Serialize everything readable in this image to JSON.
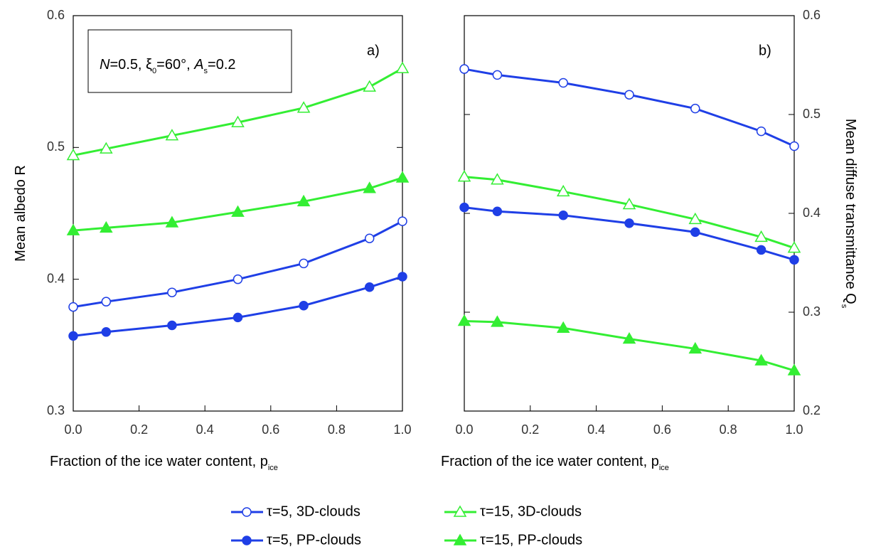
{
  "chart_data": [
    {
      "type": "line",
      "panel_label": "a)",
      "annotation": [
        "N",
        "=0.5, ξ",
        "0",
        "=60°, ",
        "A",
        "s",
        "=0.2"
      ],
      "xlabel": "Fraction of the ice water content, p",
      "xlabel_sub": "ice",
      "ylabel": "Mean albedo R",
      "yaxis_side": "left",
      "x": [
        0,
        0.1,
        0.3,
        0.5,
        0.7,
        0.9,
        1.0
      ],
      "xlim": [
        0,
        1
      ],
      "xticks": [
        {
          "value": 0,
          "label": "0.0"
        },
        0.2,
        0.4,
        0.6,
        0.8,
        {
          "value": 1,
          "label": "1.0"
        }
      ],
      "ylim": [
        0.3,
        0.6
      ],
      "yticks": [
        0.3,
        0.4,
        0.5,
        0.6
      ],
      "series": [
        {
          "name": "τ=5,  3D-clouds",
          "color": "#1f3fe6",
          "marker": "open-circle",
          "values": [
            0.379,
            0.383,
            0.39,
            0.4,
            0.412,
            0.431,
            0.444
          ]
        },
        {
          "name": "τ=15,  3D-clouds",
          "color": "#33ee33",
          "marker": "open-triangle",
          "values": [
            0.494,
            0.499,
            0.509,
            0.519,
            0.53,
            0.546,
            0.56
          ]
        },
        {
          "name": "τ=5,  PP-clouds",
          "color": "#1f3fe6",
          "marker": "filled-circle",
          "values": [
            0.357,
            0.36,
            0.365,
            0.371,
            0.38,
            0.394,
            0.402
          ]
        },
        {
          "name": "τ=15,  PP-clouds",
          "color": "#33ee33",
          "marker": "filled-triangle",
          "values": [
            0.437,
            0.439,
            0.443,
            0.451,
            0.459,
            0.469,
            0.477
          ]
        }
      ]
    },
    {
      "type": "line",
      "panel_label": "b)",
      "xlabel": "Fraction of the ice water content, p",
      "xlabel_sub": "ice",
      "ylabel": "Mean diffuse transmittance Q",
      "ylabel_sub": "s",
      "yaxis_side": "right",
      "x": [
        0,
        0.1,
        0.3,
        0.5,
        0.7,
        0.9,
        1.0
      ],
      "xlim": [
        0,
        1
      ],
      "xticks": [
        {
          "value": 0,
          "label": "0.0"
        },
        0.2,
        0.4,
        0.6,
        0.8,
        {
          "value": 1,
          "label": "1.0"
        }
      ],
      "ylim": [
        0.2,
        0.6
      ],
      "yticks": [
        0.2,
        0.3,
        0.4,
        0.5,
        0.6
      ],
      "series": [
        {
          "color": "#1f3fe6",
          "marker": "open-circle",
          "values": [
            0.546,
            0.54,
            0.532,
            0.52,
            0.506,
            0.483,
            0.468
          ]
        },
        {
          "color": "#33ee33",
          "marker": "open-triangle",
          "values": [
            0.437,
            0.434,
            0.422,
            0.409,
            0.394,
            0.376,
            0.365
          ]
        },
        {
          "color": "#1f3fe6",
          "marker": "filled-circle",
          "values": [
            0.406,
            0.402,
            0.398,
            0.39,
            0.381,
            0.363,
            0.353
          ]
        },
        {
          "color": "#33ee33",
          "marker": "filled-triangle",
          "values": [
            0.291,
            0.29,
            0.284,
            0.273,
            0.263,
            0.251,
            0.241
          ]
        }
      ]
    }
  ]
}
